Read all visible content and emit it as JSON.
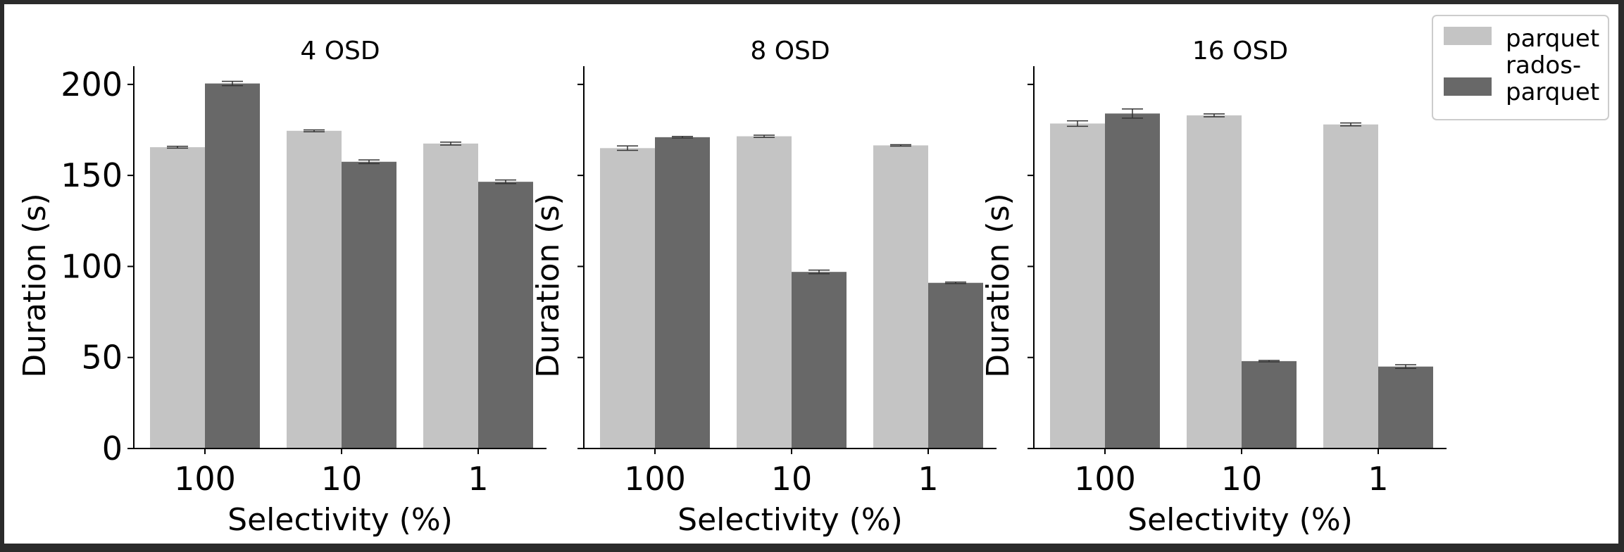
{
  "chart_data": {
    "type": "bar",
    "ylim": [
      0,
      210
    ],
    "yticks": [
      "0",
      "50",
      "100",
      "150",
      "200"
    ],
    "categories": [
      "100",
      "10",
      "1"
    ],
    "xlabel": "Selectivity (%)",
    "ylabel": "Duration (s)",
    "grid": false,
    "legend_placement": "top-right",
    "legend": [
      {
        "label_lines": [
          "parquet"
        ],
        "color": "#c4c4c4"
      },
      {
        "label_lines": [
          "rados-",
          "parquet"
        ],
        "color": "#686868"
      }
    ],
    "panels": [
      {
        "title": "4 OSD",
        "series": [
          {
            "name": "parquet",
            "color": "#c4c4c4",
            "values": [
              165.5,
              174.5,
              167.5
            ],
            "errors": [
              0.5,
              0.5,
              0.8
            ]
          },
          {
            "name": "rados-parquet",
            "color": "#686868",
            "values": [
              200.5,
              157.5,
              146.5
            ],
            "errors": [
              1.2,
              1.0,
              1.0
            ]
          }
        ]
      },
      {
        "title": "8 OSD",
        "series": [
          {
            "name": "parquet",
            "color": "#c4c4c4",
            "values": [
              165.0,
              171.5,
              166.5
            ],
            "errors": [
              1.2,
              0.6,
              0.4
            ]
          },
          {
            "name": "rados-parquet",
            "color": "#686868",
            "values": [
              171.0,
              97.0,
              91.0
            ],
            "errors": [
              0.4,
              1.0,
              0.4
            ]
          }
        ]
      },
      {
        "title": "16 OSD",
        "series": [
          {
            "name": "parquet",
            "color": "#c4c4c4",
            "values": [
              178.5,
              183.0,
              178.0
            ],
            "errors": [
              1.5,
              0.8,
              0.8
            ]
          },
          {
            "name": "rados-parquet",
            "color": "#686868",
            "values": [
              184.0,
              48.0,
              45.0
            ],
            "errors": [
              2.5,
              0.4,
              1.0
            ]
          }
        ]
      }
    ]
  }
}
